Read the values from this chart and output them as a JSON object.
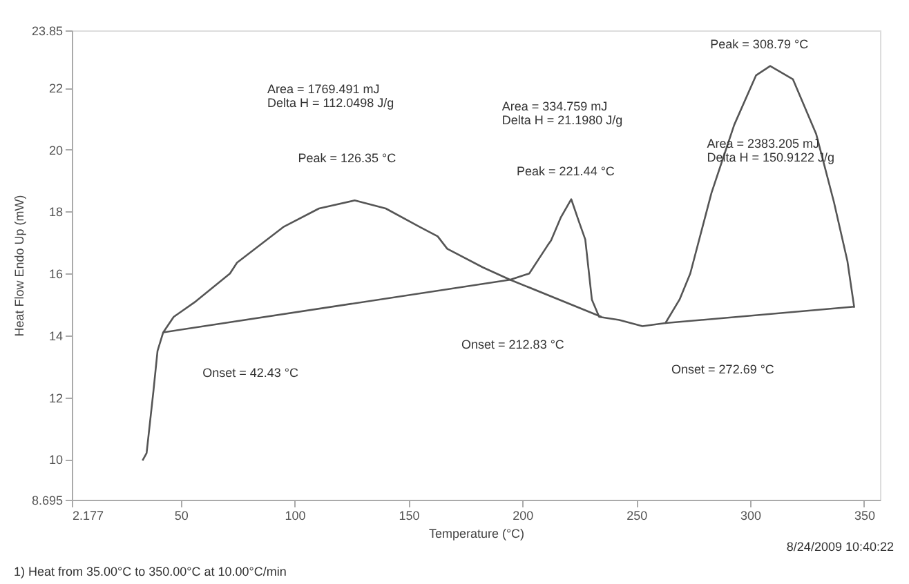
{
  "chart_data": {
    "type": "line",
    "xlabel": "Temperature (°C)",
    "ylabel": "Heat Flow Endo Up (mW)",
    "xlim": [
      2.177,
      357
    ],
    "xticks": [
      2.177,
      50,
      100,
      150,
      200,
      250,
      300,
      350
    ],
    "ylim": [
      8.695,
      23.85
    ],
    "yticks": [
      8.695,
      10,
      12,
      14,
      16,
      18,
      20,
      22,
      23.85
    ],
    "grid": false,
    "marker": "none",
    "line_style": "solid",
    "series": [
      {
        "color": "#555555",
        "x": [
          33.2,
          35,
          38,
          39.8,
          42.3,
          46.9,
          56.6,
          71.6,
          74.7,
          95,
          110.7,
          126.35,
          140,
          155,
          162.8,
          167,
          182.6,
          194.6,
          203,
          211,
          212.6,
          216.8,
          221.44,
          224.7,
          227.6,
          230.5,
          233.7,
          242.5,
          252.7,
          262.8,
          269,
          273.7,
          283,
          293,
          302.6,
          308.79,
          318.8,
          329,
          336.8,
          342.7,
          345.7
        ],
        "values": [
          9.96,
          10.2,
          12.2,
          13.5,
          14.1,
          14.6,
          15.1,
          16.0,
          16.35,
          17.5,
          18.1,
          18.36,
          18.1,
          17.5,
          17.2,
          16.8,
          16.2,
          15.8,
          16.0,
          16.9,
          17.07,
          17.8,
          18.4,
          17.7,
          17.1,
          15.16,
          14.6,
          14.5,
          14.3,
          14.4,
          15.16,
          16.0,
          18.6,
          20.8,
          22.4,
          22.7,
          22.27,
          20.5,
          18.3,
          16.4,
          14.9
        ]
      },
      {
        "color": "#555555",
        "x": [
          42.3,
          194.6
        ],
        "values": [
          14.1,
          15.8
        ]
      },
      {
        "color": "#555555",
        "x": [
          194.6,
          234.7
        ],
        "values": [
          15.8,
          14.6
        ]
      },
      {
        "color": "#555555",
        "x": [
          262.8,
          345.7
        ],
        "values": [
          14.4,
          14.93
        ]
      }
    ],
    "annotations": [
      "Peak = 126.35 °C",
      "Peak = 221.44 °C",
      "Peak = 308.79 °C",
      "Onset = 42.43 °C",
      "Onset = 212.83 °C",
      "Onset = 272.69 °C",
      "Area = 1769.491 mJ",
      "Delta H = 112.0498 J/g",
      "Area = 334.759 mJ",
      "Delta H = 21.1980 J/g",
      "Area = 2383.205 mJ",
      "Delta H = 150.9122 J/g",
      "8/24/2009 10:40:22",
      "1) Heat from 35.00°C to 350.00°C at 10.00°C/min"
    ]
  }
}
